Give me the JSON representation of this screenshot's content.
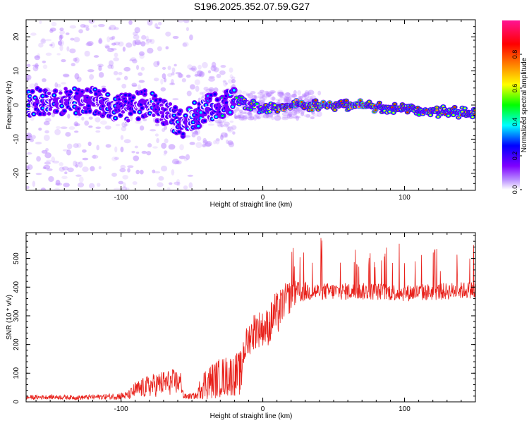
{
  "title": "S196.2025.352.07.59.G27",
  "colors": {
    "axis": "#000000",
    "snr_line": "#e8201a",
    "background": "#ffffff"
  },
  "chart_data": [
    {
      "type": "heatmap",
      "name": "spectrogram",
      "xlabel": "Height of straight line (km)",
      "ylabel": "Frequency (Hz)",
      "xlim": [
        -167,
        150
      ],
      "ylim": [
        -25,
        25
      ],
      "xticks": [
        -100,
        0,
        100
      ],
      "yticks": [
        -20,
        -10,
        0,
        10,
        20
      ],
      "xtick_labels": [
        "-100",
        "0",
        "100"
      ],
      "ytick_labels": [
        "-20",
        "-10",
        "0",
        "10",
        "20"
      ],
      "colorbar": {
        "label": "Normalized spectral amplitude",
        "range": [
          0,
          1
        ],
        "ticks": [
          0.0,
          0.2,
          0.4,
          0.6,
          0.8
        ],
        "tick_labels": [
          "0.0",
          "0.2",
          "0.4",
          "0.6",
          "0.8"
        ],
        "colormap": [
          "#ffffff",
          "#7f00ff",
          "#0000ff",
          "#00ffff",
          "#00ff00",
          "#ffff00",
          "#ff8000",
          "#ff0000",
          "#ff1493"
        ]
      },
      "ridge_frequency_hz": [
        {
          "x": -160,
          "f": 1.0
        },
        {
          "x": -120,
          "f": 1.5
        },
        {
          "x": -100,
          "f": -1.0
        },
        {
          "x": -80,
          "f": 0.5
        },
        {
          "x": -55,
          "f": -6.0
        },
        {
          "x": -45,
          "f": -2.0
        },
        {
          "x": -30,
          "f": 0.0
        },
        {
          "x": -15,
          "f": 1.0
        },
        {
          "x": 0,
          "f": -1.0
        },
        {
          "x": 20,
          "f": 0.0
        },
        {
          "x": 70,
          "f": 0.0
        },
        {
          "x": 90,
          "f": -1.0
        },
        {
          "x": 110,
          "f": -1.5
        },
        {
          "x": 148,
          "f": -2.5
        }
      ]
    },
    {
      "type": "line",
      "name": "snr",
      "xlabel": "Height of straight line (km)",
      "ylabel": "SNR (10 * v/v)",
      "xlim": [
        -167,
        150
      ],
      "ylim": [
        0,
        590
      ],
      "xticks": [
        -100,
        0,
        100
      ],
      "yticks": [
        0,
        100,
        200,
        300,
        400,
        500
      ],
      "xtick_labels": [
        "-100",
        "0",
        "100"
      ],
      "ytick_labels": [
        "0",
        "100",
        "200",
        "300",
        "400",
        "500"
      ],
      "series": [
        {
          "name": "SNR",
          "x": [
            -167,
            -150,
            -130,
            -110,
            -95,
            -90,
            -80,
            -70,
            -62,
            -57,
            -56,
            -50,
            -46,
            -44,
            -40,
            -30,
            -20,
            -15,
            -14,
            -10,
            -5,
            0,
            5,
            8,
            10,
            15,
            20,
            25,
            30,
            40,
            60,
            80,
            100,
            120,
            140,
            150
          ],
          "values": [
            15,
            17,
            15,
            18,
            22,
            40,
            55,
            65,
            70,
            65,
            18,
            20,
            22,
            55,
            65,
            85,
            95,
            100,
            170,
            220,
            255,
            255,
            265,
            310,
            300,
            350,
            370,
            380,
            385,
            385,
            385,
            385,
            380,
            383,
            388,
            392
          ],
          "noise": [
            8,
            8,
            8,
            10,
            15,
            30,
            40,
            45,
            45,
            40,
            10,
            10,
            12,
            45,
            60,
            70,
            75,
            80,
            60,
            60,
            70,
            60,
            70,
            80,
            80,
            60,
            60,
            40,
            35,
            30,
            30,
            30,
            30,
            30,
            30,
            30
          ]
        }
      ]
    }
  ]
}
